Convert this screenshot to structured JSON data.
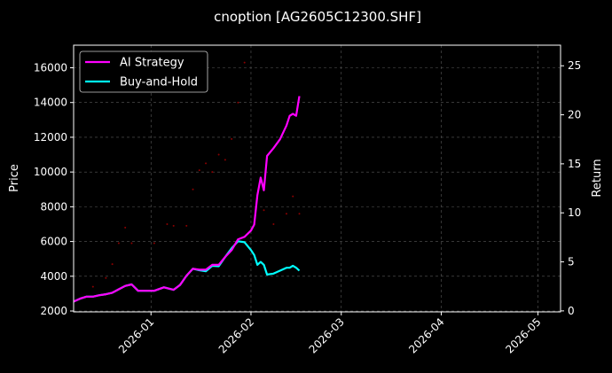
{
  "chart_data": {
    "type": "line",
    "title": "cnoption [AG2605C12300.SHF]",
    "ylabel": "Price",
    "ylabel_right": "Return",
    "xlabel": "",
    "x_type": "date",
    "xlim": [
      "2026-12-08",
      "2026-05-08"
    ],
    "xlim_fixed": [
      "2025-12-08",
      "2026-05-08"
    ],
    "ylim": [
      1950,
      17300
    ],
    "ylim_right": [
      -0.1,
      27.1
    ],
    "x_ticks": [
      "2026-01",
      "2026-02",
      "2026-03",
      "2026-04",
      "2026-05"
    ],
    "y_ticks": [
      2000,
      4000,
      6000,
      8000,
      10000,
      12000,
      14000,
      16000
    ],
    "y_ticks_right": [
      0,
      5,
      10,
      15,
      20,
      25
    ],
    "grid": true,
    "legend_position": "top-left",
    "series": [
      {
        "name": "AI Strategy",
        "axis": "right",
        "color": "#ff00ff",
        "x": [
          "2025-12-08",
          "2025-12-10",
          "2025-12-12",
          "2025-12-14",
          "2025-12-16",
          "2025-12-18",
          "2025-12-20",
          "2025-12-22",
          "2025-12-24",
          "2025-12-26",
          "2025-12-28",
          "2025-12-30",
          "2026-01-02",
          "2026-01-05",
          "2026-01-08",
          "2026-01-10",
          "2026-01-12",
          "2026-01-14",
          "2026-01-16",
          "2026-01-18",
          "2026-01-20",
          "2026-01-22",
          "2026-01-24",
          "2026-01-26",
          "2026-01-28",
          "2026-01-30",
          "2026-02-01",
          "2026-02-02",
          "2026-02-03",
          "2026-02-04",
          "2026-02-05",
          "2026-02-06",
          "2026-02-08",
          "2026-02-10",
          "2026-02-12",
          "2026-02-13",
          "2026-02-14",
          "2026-02-15",
          "2026-02-16"
        ],
        "values": [
          0.95,
          1.25,
          1.45,
          1.45,
          1.6,
          1.7,
          1.85,
          2.2,
          2.55,
          2.7,
          2.05,
          2.05,
          2.05,
          2.4,
          2.15,
          2.65,
          3.6,
          4.3,
          4.2,
          4.2,
          4.7,
          4.7,
          5.5,
          6.2,
          7.3,
          7.55,
          8.2,
          8.8,
          11.8,
          13.6,
          12.3,
          15.8,
          16.6,
          17.5,
          18.9,
          19.9,
          20.1,
          19.9,
          21.9
        ]
      },
      {
        "name": "Buy-and-Hold",
        "axis": "right",
        "color": "#00ffff",
        "x": [
          "2025-12-08",
          "2025-12-10",
          "2025-12-12",
          "2025-12-14",
          "2025-12-16",
          "2025-12-18",
          "2025-12-20",
          "2025-12-22",
          "2025-12-24",
          "2025-12-26",
          "2025-12-28",
          "2025-12-30",
          "2026-01-02",
          "2026-01-05",
          "2026-01-08",
          "2026-01-10",
          "2026-01-12",
          "2026-01-14",
          "2026-01-16",
          "2026-01-18",
          "2026-01-20",
          "2026-01-22",
          "2026-01-24",
          "2026-01-26",
          "2026-01-28",
          "2026-01-30",
          "2026-02-01",
          "2026-02-02",
          "2026-02-03",
          "2026-02-04",
          "2026-02-05",
          "2026-02-06",
          "2026-02-08",
          "2026-02-10",
          "2026-02-12",
          "2026-02-13",
          "2026-02-14",
          "2026-02-15",
          "2026-02-16"
        ],
        "values": [
          0.95,
          1.25,
          1.45,
          1.45,
          1.6,
          1.7,
          1.85,
          2.2,
          2.55,
          2.7,
          2.05,
          2.05,
          2.05,
          2.4,
          2.15,
          2.65,
          3.6,
          4.3,
          4.15,
          4.05,
          4.6,
          4.55,
          5.5,
          6.4,
          7.1,
          7.0,
          6.2,
          5.7,
          4.7,
          5.0,
          4.7,
          3.7,
          3.8,
          4.1,
          4.4,
          4.4,
          4.6,
          4.4,
          4.1
        ]
      }
    ],
    "scatter": {
      "name": "",
      "axis": "left",
      "color": "#8b0000",
      "points": [
        [
          "2025-12-14",
          3400
        ],
        [
          "2025-12-18",
          3900
        ],
        [
          "2025-12-20",
          4700
        ],
        [
          "2025-12-22",
          5900
        ],
        [
          "2025-12-24",
          6800
        ],
        [
          "2025-12-26",
          5900
        ],
        [
          "2026-01-02",
          5900
        ],
        [
          "2026-01-06",
          7000
        ],
        [
          "2026-01-08",
          6900
        ],
        [
          "2026-01-12",
          6900
        ],
        [
          "2026-01-14",
          9000
        ],
        [
          "2026-01-16",
          10100
        ],
        [
          "2026-01-18",
          10500
        ],
        [
          "2026-01-20",
          10000
        ],
        [
          "2026-01-22",
          11000
        ],
        [
          "2026-01-24",
          10700
        ],
        [
          "2026-01-26",
          11900
        ],
        [
          "2026-01-28",
          14000
        ],
        [
          "2026-01-30",
          16300
        ],
        [
          "2026-02-05",
          7800
        ],
        [
          "2026-02-08",
          7000
        ],
        [
          "2026-02-12",
          7600
        ],
        [
          "2026-02-14",
          8600
        ],
        [
          "2026-02-16",
          7600
        ]
      ]
    }
  }
}
